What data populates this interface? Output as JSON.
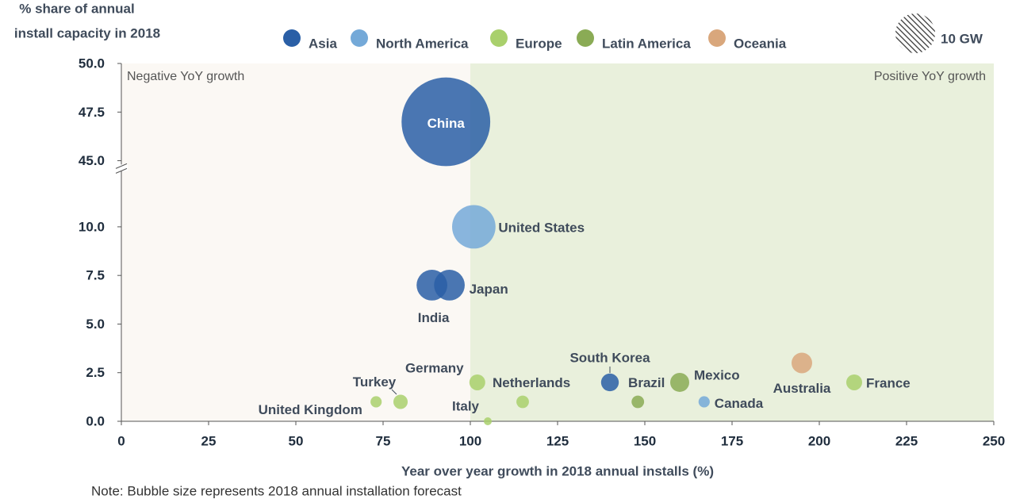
{
  "chart_data": {
    "type": "bubble",
    "y_label": [
      "% share of annual",
      "install capacity in 2018"
    ],
    "x_label": "Year over year growth in 2018 annual installs (%)",
    "note": "Note: Bubble size represents 2018 annual installation forecast",
    "xlim": [
      0,
      250
    ],
    "xticks": [
      0,
      25,
      50,
      75,
      100,
      125,
      150,
      175,
      200,
      225,
      250
    ],
    "ylim": [
      0,
      50
    ],
    "ybreak": [
      13,
      44.6
    ],
    "yticks": [
      {
        "value": 0,
        "label": "0.0"
      },
      {
        "value": 2.5,
        "label": "2.5"
      },
      {
        "value": 5,
        "label": "5.0"
      },
      {
        "value": 7.5,
        "label": "7.5"
      },
      {
        "value": 10,
        "label": "10.0"
      },
      {
        "value": 45,
        "label": "45.0"
      },
      {
        "value": 47.5,
        "label": "47.5"
      },
      {
        "value": 50,
        "label": "50.0"
      }
    ],
    "regions": [
      {
        "label": "Negative YoY growth",
        "xlim": [
          0,
          100
        ],
        "color": "#fbf8f4"
      },
      {
        "label": "Positive YoY growth",
        "xlim": [
          100,
          250
        ],
        "color": "#e9f0dc"
      }
    ],
    "size_legend": {
      "value": 10,
      "label": "10 GW"
    },
    "series": [
      {
        "name": "Asia",
        "color": "#2a5fa6",
        "labels": [
          "China",
          "Japan",
          "India",
          "South Korea"
        ],
        "x": [
          93,
          94,
          89,
          140
        ],
        "values": [
          47,
          7,
          7,
          2
        ],
        "sizes": [
          50,
          6,
          6,
          2
        ]
      },
      {
        "name": "North America",
        "color": "#74a9d8",
        "labels": [
          "United States",
          "Canada"
        ],
        "x": [
          101,
          167
        ],
        "values": [
          10,
          1
        ],
        "sizes": [
          12,
          0.8
        ]
      },
      {
        "name": "Europe",
        "color": "#a9d06c",
        "labels": [
          "Germany",
          "Netherlands",
          "Turkey",
          "United Kingdom",
          "Italy",
          "France"
        ],
        "x": [
          102,
          115,
          80,
          73,
          105,
          210
        ],
        "values": [
          2,
          1,
          1,
          1,
          0,
          2
        ],
        "sizes": [
          1.6,
          1,
          1.3,
          0.8,
          0.4,
          1.6
        ]
      },
      {
        "name": "Latin America",
        "color": "#8aab55",
        "labels": [
          "Brazil",
          "Mexico"
        ],
        "x": [
          148,
          160
        ],
        "values": [
          1,
          2
        ],
        "sizes": [
          1,
          2.3
        ]
      },
      {
        "name": "Oceania",
        "color": "#d9a77c",
        "labels": [
          "Australia"
        ],
        "x": [
          195
        ],
        "values": [
          3
        ],
        "sizes": [
          2.7
        ]
      }
    ]
  }
}
